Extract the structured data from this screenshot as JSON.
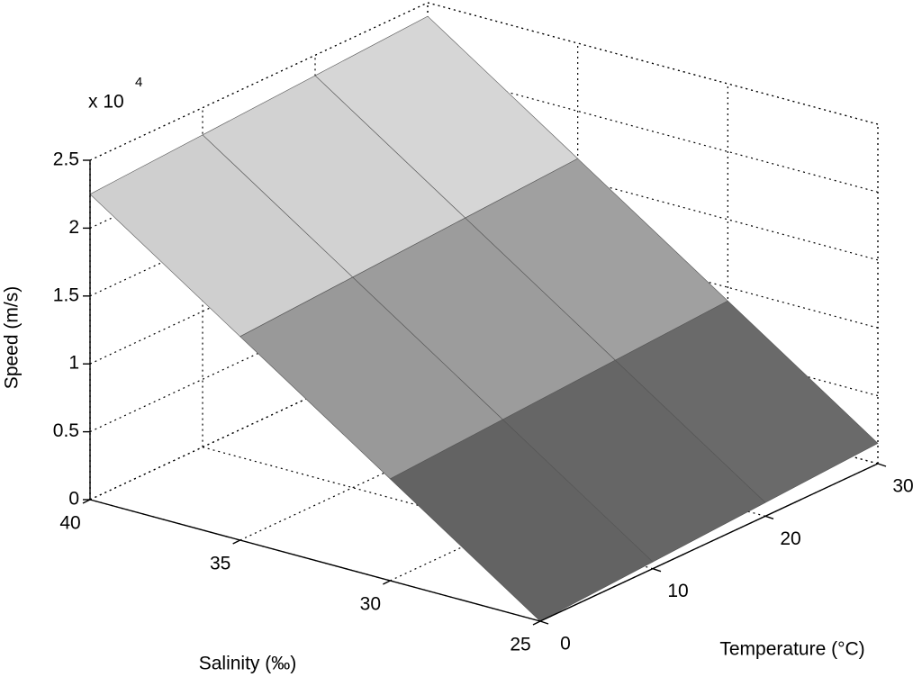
{
  "chart_data": {
    "type": "surface",
    "x_label": "Salinity (‰)",
    "y_label": "Temperature (°C)",
    "z_label": "Speed (m/s)",
    "z_multiplier": {
      "base": "x 10",
      "power": "4"
    },
    "x": [
      25,
      30,
      35,
      40
    ],
    "y": [
      0,
      10,
      20,
      30
    ],
    "z": [
      [
        0,
        500,
        1000,
        1500
      ],
      [
        7500,
        8000,
        8500,
        9000
      ],
      [
        15000,
        15500,
        16000,
        16500
      ],
      [
        22500,
        23000,
        23500,
        24000
      ]
    ],
    "xlim": [
      25,
      40
    ],
    "ylim": [
      0,
      30
    ],
    "zlim": [
      0,
      25000
    ],
    "xticks": [
      25,
      30,
      35,
      40
    ],
    "yticks": [
      0,
      10,
      20,
      30
    ],
    "zticks": [
      {
        "value": 0,
        "label": "0"
      },
      {
        "value": 5000,
        "label": "0.5"
      },
      {
        "value": 10000,
        "label": "1"
      },
      {
        "value": 15000,
        "label": "1.5"
      },
      {
        "value": 20000,
        "label": "2"
      },
      {
        "value": 25000,
        "label": "2.5"
      }
    ],
    "grid": true
  }
}
